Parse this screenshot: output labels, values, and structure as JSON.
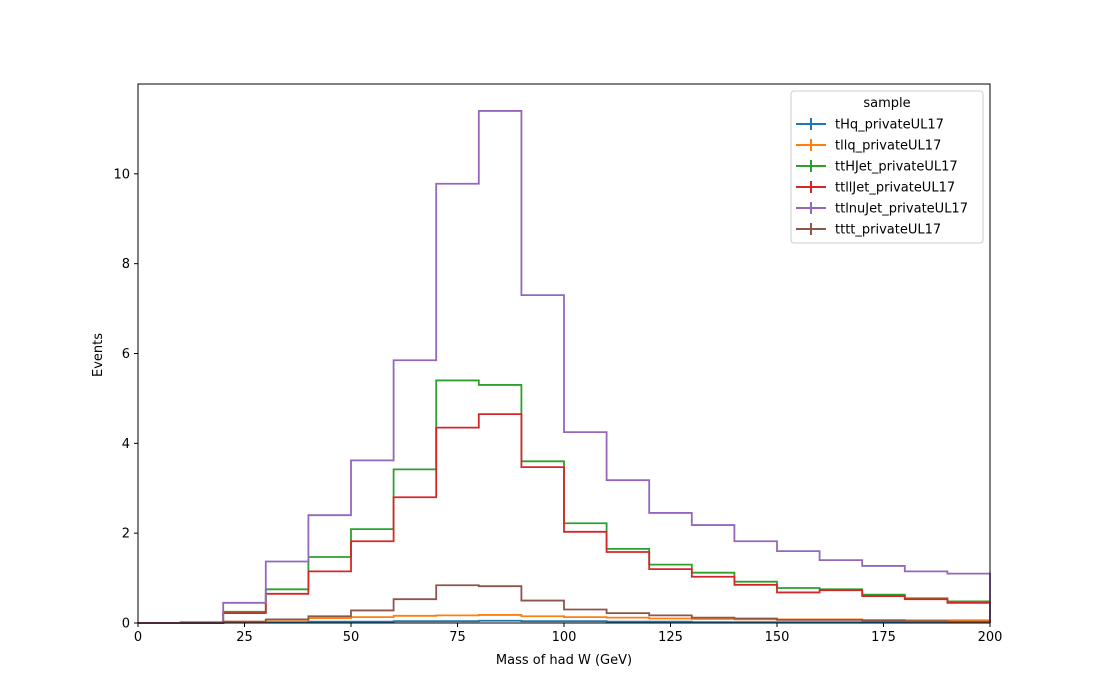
{
  "chart_data": {
    "type": "step",
    "xlabel": "Mass of had W (GeV)",
    "ylabel": "Events",
    "xlim": [
      0,
      200
    ],
    "ylim": [
      0,
      12
    ],
    "grid": false,
    "legend_placement": "top-right",
    "legend_title": "sample",
    "x_ticks": [
      0,
      25,
      50,
      75,
      100,
      125,
      150,
      175,
      200
    ],
    "y_ticks": [
      0,
      2,
      4,
      6,
      8,
      10
    ],
    "bin_edges": [
      0,
      10,
      20,
      30,
      40,
      50,
      60,
      70,
      80,
      90,
      100,
      110,
      120,
      130,
      140,
      150,
      160,
      170,
      180,
      190,
      200
    ],
    "series": [
      {
        "name": "tHq_privateUL17",
        "color": "#1f77b4",
        "values": [
          0,
          0,
          0.01,
          0.02,
          0.03,
          0.03,
          0.04,
          0.04,
          0.05,
          0.04,
          0.04,
          0.03,
          0.03,
          0.02,
          0.02,
          0.02,
          0.02,
          0.02,
          0.02,
          0.01
        ]
      },
      {
        "name": "tllq_privateUL17",
        "color": "#ff7f0e",
        "values": [
          0,
          0,
          0.03,
          0.07,
          0.11,
          0.13,
          0.16,
          0.17,
          0.18,
          0.15,
          0.13,
          0.12,
          0.1,
          0.09,
          0.08,
          0.08,
          0.08,
          0.07,
          0.06,
          0.06
        ]
      },
      {
        "name": "ttHJet_privateUL17",
        "color": "#2ca02c",
        "values": [
          0,
          0,
          0.25,
          0.75,
          1.47,
          2.09,
          3.42,
          5.4,
          5.3,
          3.6,
          2.22,
          1.65,
          1.3,
          1.12,
          0.92,
          0.78,
          0.75,
          0.63,
          0.55,
          0.48
        ]
      },
      {
        "name": "ttllJet_privateUL17",
        "color": "#d62728",
        "values": [
          0,
          0,
          0.22,
          0.65,
          1.15,
          1.82,
          2.8,
          4.35,
          4.65,
          3.47,
          2.03,
          1.58,
          1.2,
          1.03,
          0.85,
          0.68,
          0.73,
          0.6,
          0.53,
          0.45
        ]
      },
      {
        "name": "ttlnuJet_privateUL17",
        "color": "#9467bd",
        "values": [
          0,
          0.02,
          0.45,
          1.37,
          2.4,
          3.62,
          5.85,
          9.78,
          11.4,
          7.3,
          4.25,
          3.18,
          2.45,
          2.18,
          1.82,
          1.6,
          1.4,
          1.27,
          1.15,
          1.1
        ]
      },
      {
        "name": "tttt_privateUL17",
        "color": "#8c564b",
        "values": [
          0,
          0,
          0.03,
          0.08,
          0.15,
          0.28,
          0.53,
          0.84,
          0.82,
          0.5,
          0.3,
          0.22,
          0.17,
          0.12,
          0.1,
          0.07,
          0.07,
          0.05,
          0.04,
          0.03
        ]
      }
    ]
  }
}
